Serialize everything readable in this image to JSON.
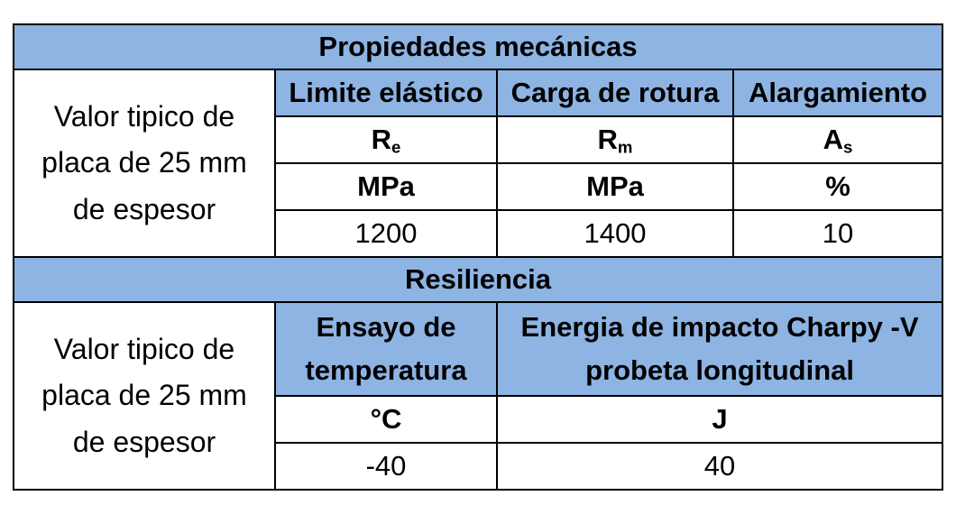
{
  "mechanical": {
    "title": "Propiedades mecánicas",
    "row_label": [
      "Valor tipico de",
      "placa de 25 mm",
      "de espesor"
    ],
    "headers": [
      "Limite elástico",
      "Carga de rotura",
      "Alargamiento"
    ],
    "symbols": [
      {
        "base": "R",
        "sub": "e"
      },
      {
        "base": "R",
        "sub": "m"
      },
      {
        "base": "A",
        "sub": "s"
      }
    ],
    "units": [
      "MPa",
      "MPa",
      "%"
    ],
    "values": [
      "1200",
      "1400",
      "10"
    ]
  },
  "resilience": {
    "title": "Resiliencia",
    "row_label": [
      "Valor tipico de",
      "placa de 25 mm",
      "de espesor"
    ],
    "headers": [
      [
        "Ensayo de",
        "temperatura"
      ],
      [
        "Energia de impacto Charpy -V",
        "probeta longitudinal"
      ]
    ],
    "units": [
      "°C",
      "J"
    ],
    "values": [
      "-40",
      "40"
    ]
  },
  "colors": {
    "header_fill": "#8db4e2",
    "border": "#000000"
  }
}
